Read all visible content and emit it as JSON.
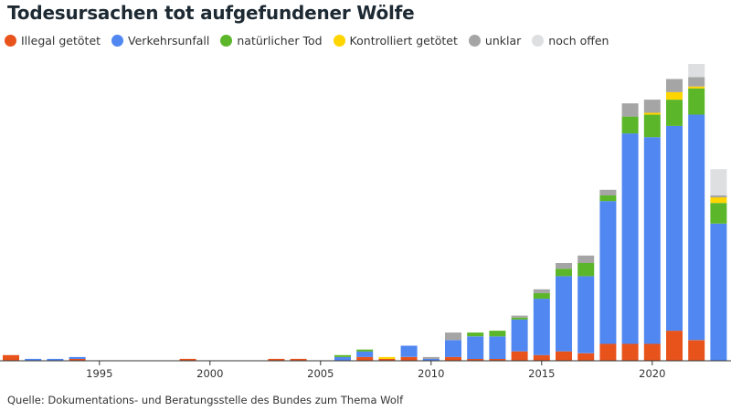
{
  "title": "Todesursachen tot aufgefundener Wölfe",
  "source": "Quelle: Dokumentations- und Beratungsstelle des Bundes zum Thema Wolf",
  "chart_data": {
    "type": "bar",
    "stacked": true,
    "legend_placement": "top-left",
    "grid": false,
    "ylim": [
      0,
      158
    ],
    "x": [
      1991,
      1992,
      1993,
      1994,
      1995,
      1996,
      1997,
      1998,
      1999,
      2000,
      2001,
      2002,
      2003,
      2004,
      2005,
      2006,
      2007,
      2008,
      2009,
      2010,
      2011,
      2012,
      2013,
      2014,
      2015,
      2016,
      2017,
      2018,
      2019,
      2020,
      2021,
      2022,
      2023
    ],
    "x_ticks": [
      "1995",
      "2000",
      "2005",
      "2010",
      "2015",
      "2020"
    ],
    "series": [
      {
        "name": "Illegal getötet",
        "color": "#e8531c",
        "values": [
          3,
          0,
          0,
          1,
          0,
          0,
          0,
          0,
          1,
          0,
          0,
          0,
          1,
          1,
          0,
          0,
          2,
          1,
          2,
          0,
          2,
          1,
          1,
          5,
          3,
          5,
          4,
          9,
          9,
          9,
          16,
          11,
          0
        ]
      },
      {
        "name": "Verkehrsunfall",
        "color": "#5087f1",
        "values": [
          0,
          1,
          1,
          1,
          0,
          0,
          0,
          0,
          0,
          0,
          0,
          0,
          0,
          0,
          0,
          2,
          3,
          0,
          6,
          1,
          9,
          12,
          12,
          17,
          30,
          40,
          41,
          76,
          112,
          110,
          109,
          120,
          73
        ]
      },
      {
        "name": "natürlicher Tod",
        "color": "#5cb62a",
        "values": [
          0,
          0,
          0,
          0,
          0,
          0,
          0,
          0,
          0,
          0,
          0,
          0,
          0,
          0,
          0,
          1,
          1,
          0,
          0,
          0,
          0,
          2,
          3,
          1,
          3,
          4,
          7,
          3,
          9,
          12,
          14,
          14,
          11
        ]
      },
      {
        "name": "Kontrolliert getötet",
        "color": "#ffd500",
        "values": [
          0,
          0,
          0,
          0,
          0,
          0,
          0,
          0,
          0,
          0,
          0,
          0,
          0,
          0,
          0,
          0,
          0,
          1,
          0,
          0,
          0,
          0,
          0,
          0,
          0,
          0,
          0,
          0,
          0,
          1,
          4,
          1,
          3
        ]
      },
      {
        "name": "unklar",
        "color": "#a5a5a5",
        "values": [
          0,
          0,
          0,
          0,
          0,
          0,
          0,
          0,
          0,
          0,
          0,
          0,
          0,
          0,
          0,
          0,
          0,
          0,
          0,
          1,
          4,
          0,
          0,
          1,
          2,
          3,
          4,
          3,
          7,
          7,
          7,
          5,
          1
        ]
      },
      {
        "name": "noch offen",
        "color": "#dedfe1",
        "values": [
          0,
          0,
          0,
          0,
          0,
          0,
          0,
          0,
          0,
          0,
          0,
          0,
          0,
          0,
          0,
          0,
          0,
          0,
          0,
          0,
          0,
          0,
          0,
          0,
          0,
          0,
          0,
          0,
          0,
          0,
          0,
          7,
          14
        ]
      }
    ]
  }
}
